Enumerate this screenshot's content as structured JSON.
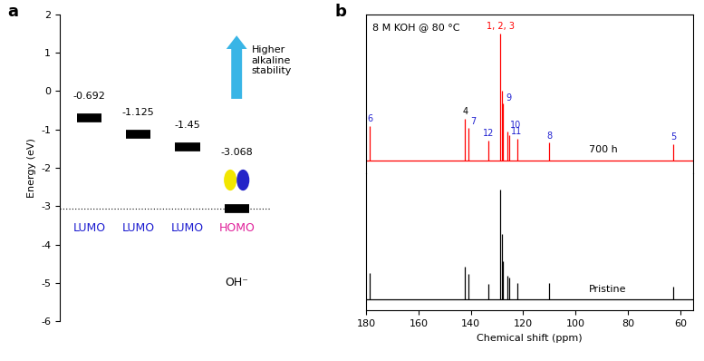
{
  "chart_data": [
    {
      "type": "energy_levels",
      "panel_label": "a",
      "y_label": "Energy (eV)",
      "ylim": [
        -6,
        2
      ],
      "yticks": [
        -6,
        -5,
        -4,
        -3,
        -2,
        -1,
        0,
        1,
        2
      ],
      "tick_labels": "y",
      "data_labels": true,
      "levels": [
        {
          "value": -0.692,
          "orbital": "LUMO",
          "color": "#1c1cd0"
        },
        {
          "value": -1.125,
          "orbital": "LUMO",
          "color": "#1c1cd0"
        },
        {
          "value": -1.45,
          "orbital": "LUMO",
          "color": "#1c1cd0"
        },
        {
          "value": -3.068,
          "orbital": "HOMO",
          "color": "#e0209a",
          "species": "OH⁻"
        }
      ],
      "arrow_label": "Higher alkaline stability"
    },
    {
      "type": "spectrum",
      "panel_label": "b",
      "title": "8 M KOH @ 80 °C",
      "x_label": "Chemical shift (ppm)",
      "xlim": [
        180,
        55
      ],
      "xticks": [
        180,
        160,
        140,
        120,
        100,
        80,
        60
      ],
      "ylim": [
        -0.1,
        1.15
      ],
      "tick_labels": "x",
      "series": [
        {
          "name": "700 h",
          "color": "#ff0000",
          "x": [
            178.5,
            142.2,
            141.0,
            133.3,
            128.8,
            128.2,
            127.6,
            126.0,
            125.5,
            122.4,
            110.0,
            62.6
          ],
          "values": [
            0.27,
            0.33,
            0.26,
            0.16,
            1.0,
            0.55,
            0.45,
            0.23,
            0.2,
            0.17,
            0.14,
            0.13
          ]
        },
        {
          "name": "Pristine",
          "color": "#000000",
          "x": [
            178.5,
            142.2,
            141.0,
            133.3,
            128.8,
            128.2,
            127.6,
            126.0,
            125.5,
            122.4,
            110.0,
            62.6
          ],
          "values": [
            0.24,
            0.3,
            0.23,
            0.14,
            1.0,
            0.6,
            0.35,
            0.22,
            0.2,
            0.15,
            0.15,
            0.12
          ]
        }
      ],
      "peak_labels": [
        {
          "x": 178.5,
          "label": "6",
          "color": "#2020d0"
        },
        {
          "x": 142.2,
          "label": "4",
          "color": "#000000"
        },
        {
          "x": 141.0,
          "label": "7",
          "color": "#2020d0"
        },
        {
          "x": 133.3,
          "label": "12",
          "color": "#2020d0"
        },
        {
          "x": 128.8,
          "label": "1, 2, 3",
          "color": "#ff0000"
        },
        {
          "x": 127.6,
          "label": "9",
          "color": "#2020d0"
        },
        {
          "x": 126.0,
          "label": "10",
          "color": "#2020d0"
        },
        {
          "x": 122.4,
          "label": "11",
          "color": "#2020d0"
        },
        {
          "x": 110.0,
          "label": "8",
          "color": "#2020d0"
        },
        {
          "x": 62.6,
          "label": "5",
          "color": "#2020d0"
        }
      ]
    }
  ]
}
